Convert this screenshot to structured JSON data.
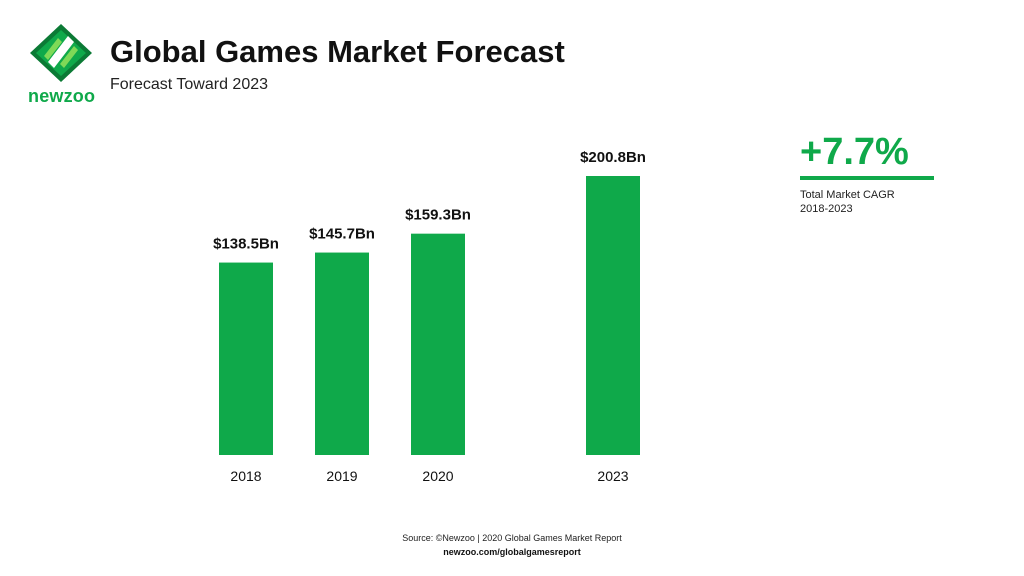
{
  "header": {
    "title": "Global Games Market Forecast",
    "subtitle": "Forecast Toward 2023",
    "logo_text": "newzoo"
  },
  "cagr": {
    "value": "+7.7%",
    "label_line1": "Total Market CAGR",
    "label_line2": "2018-2023"
  },
  "footer": {
    "source": "Source: ©Newzoo | 2020 Global Games Market Report",
    "url": "newzoo.com/globalgamesreport"
  },
  "colors": {
    "bar": "#0fa94a",
    "accent": "#0fa94a",
    "text": "#111111",
    "logo_dark": "#0b7a35"
  },
  "chart_data": {
    "type": "bar",
    "title": "Global Games Market Forecast",
    "subtitle": "Forecast Toward 2023",
    "categories": [
      "2018",
      "2019",
      "2020",
      "2023"
    ],
    "values": [
      138.5,
      145.7,
      159.3,
      200.8
    ],
    "value_labels": [
      "$138.5Bn",
      "$145.7Bn",
      "$159.3Bn",
      "$200.8Bn"
    ],
    "unit": "$Bn",
    "xlabel": "",
    "ylabel": "",
    "ylim": [
      0,
      200.8
    ],
    "grid": false,
    "legend": "none"
  }
}
